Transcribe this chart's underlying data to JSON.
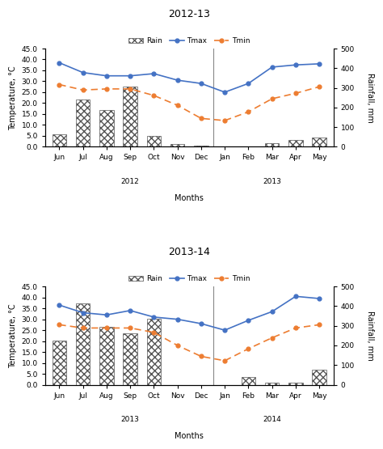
{
  "chart1": {
    "title": "2012-13",
    "months": [
      "Jun",
      "Jul",
      "Aug",
      "Sep",
      "Oct",
      "Nov",
      "Dec",
      "Jan",
      "Feb",
      "Mar",
      "Apr",
      "May"
    ],
    "year_labels": [
      "2012",
      "2013"
    ],
    "rain": [
      65,
      240,
      185,
      305,
      55,
      15,
      5,
      2,
      1,
      20,
      35,
      45
    ],
    "tmax": [
      38.5,
      34.0,
      32.5,
      32.5,
      33.5,
      30.5,
      29.0,
      25.0,
      29.0,
      36.5,
      37.5,
      38.0
    ],
    "tmin": [
      28.5,
      26.0,
      26.5,
      26.5,
      23.5,
      19.0,
      13.0,
      12.0,
      16.0,
      22.0,
      24.5,
      27.5
    ]
  },
  "chart2": {
    "title": "2013-14",
    "months": [
      "Jun",
      "Jul",
      "Aug",
      "Sep",
      "Oct",
      "Nov",
      "Dec",
      "Jan",
      "Feb",
      "Mar",
      "Apr",
      "May"
    ],
    "year_labels": [
      "2013",
      "2014"
    ],
    "rain": [
      225,
      415,
      295,
      260,
      335,
      0,
      0,
      0,
      40,
      10,
      10,
      75
    ],
    "tmax": [
      36.5,
      33.0,
      32.0,
      34.0,
      31.0,
      30.0,
      28.0,
      25.0,
      29.5,
      33.5,
      40.5,
      39.5
    ],
    "tmin": [
      27.5,
      26.0,
      26.0,
      26.0,
      24.0,
      18.0,
      13.0,
      11.0,
      16.5,
      21.5,
      26.0,
      27.5
    ]
  },
  "temp_ylim": [
    0.0,
    45.0
  ],
  "temp_yticks": [
    0.0,
    5.0,
    10.0,
    15.0,
    20.0,
    25.0,
    30.0,
    35.0,
    40.0,
    45.0
  ],
  "rain_ylim": [
    0,
    500
  ],
  "rain_yticks": [
    0,
    100,
    200,
    300,
    400,
    500
  ],
  "ylabel_left": "Temperature, °C",
  "ylabel_right": "Rainfall, mm",
  "xlabel": "Months",
  "tmax_color": "#4472c4",
  "tmin_color": "#ed7d31",
  "bar_edgecolor": "#555555",
  "temp_max": 45.0,
  "rain_max": 500.0
}
